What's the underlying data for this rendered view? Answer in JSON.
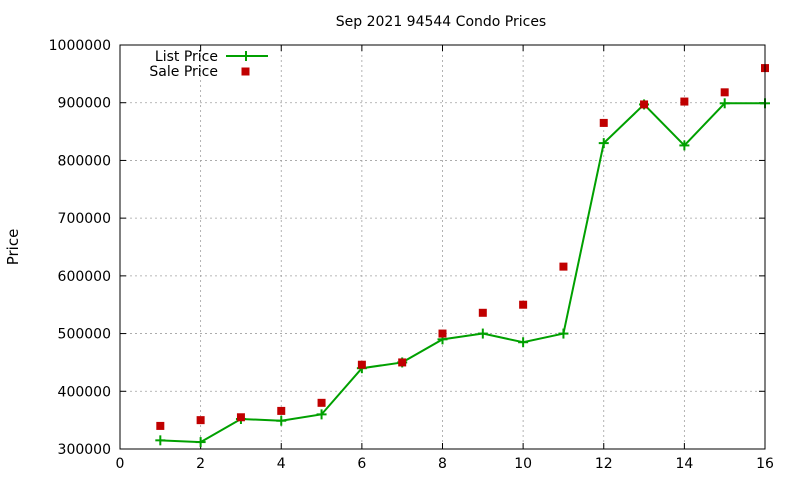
{
  "chart_data": {
    "type": "line",
    "title": "Sep 2021 94544 Condo Prices",
    "xlabel": "",
    "ylabel": "Price",
    "xlim": [
      0,
      16
    ],
    "ylim": [
      300000,
      1000000
    ],
    "xticks": [
      0,
      2,
      4,
      6,
      8,
      10,
      12,
      14,
      16
    ],
    "yticks": [
      300000,
      400000,
      500000,
      600000,
      700000,
      800000,
      900000,
      1000000
    ],
    "xtick_labels": [
      "0",
      "2",
      "4",
      "6",
      "8",
      "10",
      "12",
      "14",
      "16"
    ],
    "ytick_labels": [
      "300000",
      "400000",
      "500000",
      "600000",
      "700000",
      "800000",
      "900000",
      "1000000"
    ],
    "grid": true,
    "legend_position": "top-left",
    "series": [
      {
        "name": "List Price",
        "style": "line-with-plus-markers",
        "color": "#00a000",
        "x": [
          1,
          2,
          3,
          4,
          5,
          6,
          7,
          8,
          9,
          10,
          11,
          12,
          13,
          14,
          15,
          16
        ],
        "y": [
          315000,
          312000,
          352000,
          349000,
          360000,
          440000,
          450000,
          490000,
          500000,
          485000,
          500000,
          830000,
          897000,
          826000,
          899000,
          899000
        ]
      },
      {
        "name": "Sale Price",
        "style": "square-markers",
        "color": "#c00000",
        "x": [
          1,
          2,
          3,
          4,
          5,
          6,
          7,
          8,
          9,
          10,
          11,
          12,
          13,
          14,
          15,
          16
        ],
        "y": [
          340000,
          350000,
          355000,
          366000,
          380000,
          446000,
          450000,
          500000,
          536000,
          550000,
          616000,
          865000,
          897000,
          902000,
          918000,
          960000
        ]
      }
    ]
  }
}
